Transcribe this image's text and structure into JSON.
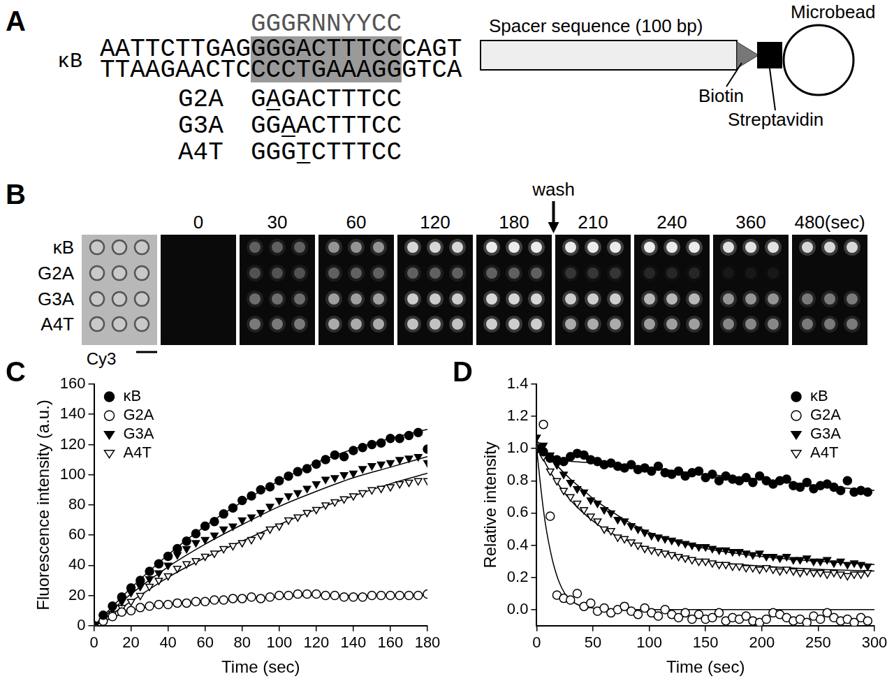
{
  "panel_a": {
    "letter": "A",
    "label": "κB",
    "consensus": "GGGRNNYYCC",
    "top_strand": [
      "AATTCTTGAG",
      "GGGACTTTCC",
      "CAGT"
    ],
    "bottom_strand": [
      "TTAAGAACTC",
      "CCCTGAAAGG",
      "GTCA"
    ],
    "mutants": [
      {
        "name": "G2A",
        "sequence": "GAGACTTTCC",
        "mutated_position": 2
      },
      {
        "name": "G3A",
        "sequence": "GGAACTTTCC",
        "mutated_position": 3
      },
      {
        "name": "A4T",
        "sequence": "GGGTCTTTCC",
        "mutated_position": 4
      }
    ],
    "spacer": "Spacer sequence (100 bp)",
    "bead": "Microbead",
    "biotin": "Biotin",
    "streptavidin": "Streptavidin"
  },
  "panel_b": {
    "letter": "B",
    "row_labels": [
      "κB",
      "G2A",
      "G3A",
      "A4T"
    ],
    "brightfield_label": "Cy3",
    "time_labels": [
      "0",
      "30",
      "60",
      "120",
      "180",
      "210",
      "240",
      "360",
      "480(sec)"
    ],
    "annotation": {
      "text": "wash",
      "between": [
        "180",
        "210"
      ]
    },
    "brightness": [
      [
        0,
        0.3,
        0.5,
        0.8,
        0.9,
        0.9,
        0.9,
        0.85,
        0.8
      ],
      [
        0,
        0.25,
        0.3,
        0.3,
        0.3,
        0.15,
        0.1,
        0.05,
        0
      ],
      [
        0,
        0.35,
        0.55,
        0.75,
        0.8,
        0.75,
        0.65,
        0.5,
        0.4
      ],
      [
        0,
        0.4,
        0.6,
        0.7,
        0.75,
        0.6,
        0.55,
        0.45,
        0.4
      ]
    ]
  },
  "chart_data": [
    {
      "letter": "C",
      "type": "scatter",
      "x_label": "Time (sec)",
      "y_label": "Fluorescence intensity (a.u.)",
      "xlim": [
        0,
        180
      ],
      "xticks": [
        0,
        20,
        40,
        60,
        80,
        100,
        120,
        140,
        160,
        180
      ],
      "ylim": [
        0,
        160
      ],
      "yticks": [
        0,
        20,
        40,
        60,
        80,
        100,
        120,
        140,
        160
      ],
      "grid": false,
      "legend": "top-left",
      "x": [
        0,
        5,
        10,
        15,
        20,
        25,
        30,
        35,
        40,
        45,
        50,
        55,
        60,
        65,
        70,
        75,
        80,
        85,
        90,
        95,
        100,
        105,
        110,
        115,
        120,
        125,
        130,
        135,
        140,
        145,
        150,
        155,
        160,
        165,
        170,
        175,
        180
      ],
      "series": [
        {
          "name": "κB",
          "color": "#000000",
          "marker": "circle",
          "values": [
            0,
            7,
            13,
            19,
            25,
            30,
            36,
            41,
            46,
            51,
            56,
            61,
            66,
            69,
            74,
            78,
            83,
            86,
            90,
            92,
            96,
            99,
            102,
            104,
            107,
            110,
            113,
            112,
            116,
            118,
            120,
            121,
            124,
            124,
            126,
            128,
            117
          ],
          "fit": {
            "x": [
              0,
              20,
              40,
              60,
              80,
              100,
              120,
              140,
              160,
              180
            ],
            "values": [
              0,
              25,
              47,
              66,
              82,
              96,
              108,
              117,
              124,
              130
            ]
          }
        },
        {
          "name": "G2A",
          "color": "#000000",
          "marker": "circle-open",
          "values": [
            0,
            3,
            6,
            9,
            10,
            12,
            13,
            14,
            14,
            15,
            15,
            16,
            16,
            17,
            17,
            18,
            18,
            19,
            18,
            19,
            20,
            20,
            21,
            21,
            21,
            20,
            20,
            19,
            19,
            19,
            20,
            20,
            20,
            20,
            20,
            20,
            21
          ],
          "fit": {
            "x": [
              0,
              20,
              40,
              60,
              80,
              100,
              120,
              140,
              160,
              180
            ],
            "values": [
              0,
              10,
              14,
              16,
              18,
              19,
              20,
              20,
              20,
              20
            ]
          }
        },
        {
          "name": "G3A",
          "color": "#000000",
          "marker": "triangle-down",
          "values": [
            0,
            5,
            11,
            16,
            22,
            26,
            31,
            35,
            40,
            47,
            51,
            55,
            57,
            60,
            64,
            66,
            70,
            72,
            75,
            79,
            83,
            86,
            88,
            91,
            94,
            97,
            98,
            100,
            101,
            104,
            106,
            107,
            108,
            110,
            111,
            112,
            108
          ],
          "fit": {
            "x": [
              0,
              20,
              40,
              60,
              80,
              100,
              120,
              140,
              160,
              180
            ],
            "values": [
              0,
              21,
              39,
              54,
              67,
              79,
              89,
              98,
              105,
              112
            ]
          }
        },
        {
          "name": "A4T",
          "color": "#000000",
          "marker": "triangle-down-open",
          "values": [
            0,
            3,
            8,
            12,
            16,
            20,
            26,
            30,
            33,
            38,
            41,
            43,
            46,
            48,
            51,
            53,
            55,
            57,
            60,
            64,
            66,
            70,
            72,
            75,
            77,
            80,
            82,
            84,
            86,
            88,
            90,
            91,
            92,
            94,
            95,
            96,
            96
          ],
          "fit": {
            "x": [
              0,
              20,
              40,
              60,
              80,
              100,
              120,
              140,
              160,
              180
            ],
            "values": [
              0,
              16,
              32,
              45,
              56,
              67,
              77,
              86,
              94,
              101
            ]
          }
        }
      ]
    },
    {
      "letter": "D",
      "type": "scatter",
      "x_label": "Time (sec)",
      "y_label": "Relative intensity",
      "xlim": [
        0,
        300
      ],
      "xticks": [
        0,
        50,
        100,
        150,
        200,
        250,
        300
      ],
      "ylim": [
        -0.1,
        1.4
      ],
      "yticks": [
        {
          "value": 0,
          "label": "0.0"
        },
        0.2,
        0.4,
        0.6,
        0.8,
        {
          "value": 1,
          "label": "1.0"
        },
        1.2,
        1.4
      ],
      "grid": false,
      "legend": "top-right",
      "x": [
        0,
        6,
        12,
        18,
        24,
        30,
        36,
        42,
        48,
        54,
        60,
        66,
        72,
        78,
        84,
        90,
        96,
        102,
        108,
        114,
        120,
        126,
        132,
        138,
        144,
        150,
        156,
        162,
        168,
        174,
        180,
        186,
        192,
        198,
        204,
        210,
        216,
        222,
        228,
        234,
        240,
        246,
        252,
        258,
        264,
        270,
        276,
        282,
        288,
        294
      ],
      "series": [
        {
          "name": "κB",
          "color": "#000000",
          "marker": "circle",
          "values": [
            1.0,
            0.98,
            0.94,
            0.93,
            0.92,
            0.95,
            0.97,
            0.96,
            0.93,
            0.92,
            0.9,
            0.91,
            0.89,
            0.88,
            0.9,
            0.87,
            0.88,
            0.86,
            0.89,
            0.85,
            0.84,
            0.86,
            0.83,
            0.85,
            0.86,
            0.82,
            0.84,
            0.8,
            0.83,
            0.81,
            0.8,
            0.82,
            0.79,
            0.83,
            0.8,
            0.78,
            0.8,
            0.81,
            0.77,
            0.76,
            0.79,
            0.75,
            0.77,
            0.78,
            0.76,
            0.74,
            0.8,
            0.73,
            0.74,
            0.73
          ],
          "fit": {
            "x": [
              0,
              10,
              20,
              50,
              100,
              150,
              200,
              250,
              300
            ],
            "values": [
              1.0,
              0.95,
              0.93,
              0.91,
              0.88,
              0.84,
              0.81,
              0.77,
              0.74
            ]
          }
        },
        {
          "name": "G2A",
          "color": "#000000",
          "marker": "circle-open",
          "values": [
            1.0,
            1.15,
            0.58,
            0.09,
            0.07,
            0.06,
            0.1,
            0.02,
            0.04,
            -0.01,
            0.01,
            -0.02,
            0.0,
            0.02,
            -0.01,
            -0.03,
            0.01,
            -0.02,
            -0.04,
            0.0,
            -0.03,
            -0.05,
            -0.02,
            -0.06,
            -0.03,
            -0.06,
            -0.05,
            -0.02,
            -0.07,
            -0.05,
            -0.06,
            -0.04,
            -0.07,
            -0.08,
            -0.06,
            -0.02,
            -0.03,
            -0.05,
            -0.07,
            -0.06,
            -0.08,
            -0.04,
            -0.06,
            -0.02,
            -0.05,
            -0.07,
            -0.06,
            -0.08,
            -0.05,
            -0.07
          ],
          "fit": {
            "x": [
              0,
              3,
              6,
              9,
              12,
              15,
              20,
              25,
              30,
              40,
              50,
              75,
              100,
              150,
              200,
              300
            ],
            "values": [
              1.0,
              0.8,
              0.62,
              0.48,
              0.37,
              0.28,
              0.17,
              0.1,
              0.06,
              0.02,
              0.01,
              0,
              0,
              0,
              0,
              0
            ]
          }
        },
        {
          "name": "G3A",
          "color": "#000000",
          "marker": "triangle-down",
          "values": [
            1.07,
            1.02,
            0.96,
            0.9,
            0.84,
            0.79,
            0.75,
            0.73,
            0.68,
            0.66,
            0.62,
            0.6,
            0.56,
            0.55,
            0.52,
            0.5,
            0.48,
            0.46,
            0.45,
            0.44,
            0.43,
            0.42,
            0.41,
            0.4,
            0.39,
            0.39,
            0.38,
            0.37,
            0.37,
            0.36,
            0.36,
            0.35,
            0.34,
            0.35,
            0.33,
            0.33,
            0.32,
            0.33,
            0.31,
            0.31,
            0.32,
            0.3,
            0.3,
            0.31,
            0.29,
            0.3,
            0.28,
            0.29,
            0.28,
            0.27
          ],
          "fit": {
            "x": [
              0,
              10,
              20,
              30,
              40,
              50,
              60,
              80,
              100,
              125,
              150,
              200,
              250,
              300
            ],
            "values": [
              1.05,
              0.96,
              0.88,
              0.81,
              0.75,
              0.69,
              0.64,
              0.55,
              0.48,
              0.42,
              0.38,
              0.33,
              0.3,
              0.28
            ]
          }
        },
        {
          "name": "A4T",
          "color": "#000000",
          "marker": "triangle-down-open",
          "values": [
            1.02,
            0.95,
            0.86,
            0.8,
            0.74,
            0.7,
            0.66,
            0.62,
            0.58,
            0.55,
            0.5,
            0.49,
            0.45,
            0.44,
            0.42,
            0.4,
            0.38,
            0.37,
            0.36,
            0.35,
            0.34,
            0.33,
            0.32,
            0.31,
            0.3,
            0.3,
            0.29,
            0.28,
            0.28,
            0.27,
            0.27,
            0.26,
            0.26,
            0.25,
            0.26,
            0.25,
            0.24,
            0.25,
            0.24,
            0.23,
            0.24,
            0.23,
            0.23,
            0.22,
            0.23,
            0.22,
            0.21,
            0.22,
            0.22,
            0.23
          ],
          "fit": {
            "x": [
              0,
              10,
              20,
              30,
              40,
              50,
              60,
              80,
              100,
              125,
              150,
              200,
              250,
              300
            ],
            "values": [
              1.02,
              0.88,
              0.77,
              0.68,
              0.61,
              0.55,
              0.5,
              0.43,
              0.38,
              0.33,
              0.3,
              0.27,
              0.25,
              0.24
            ]
          }
        }
      ]
    }
  ]
}
